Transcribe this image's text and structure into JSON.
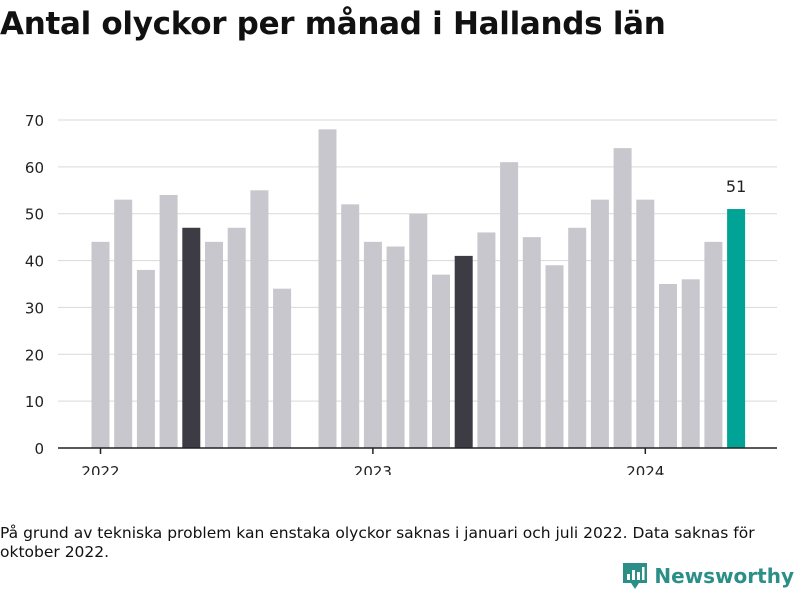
{
  "title": "Antal olyckor per månad i Hallands län",
  "footnote": "På grund av tekniska problem kan enstaka olyckor saknas i januari och juli 2022. Data saknas för oktober 2022.",
  "brand": {
    "name": "Newsworthy",
    "icon": "newsworthy-logo-icon",
    "color": "#2b8f87"
  },
  "colors": {
    "default": "#c8c7ce",
    "highlight": "#3d3c45",
    "latest": "#00a395",
    "grid": "#d9d9d9",
    "axis": "#222222"
  },
  "chart_data": {
    "type": "bar",
    "title": "Antal olyckor per månad i Hallands län",
    "xlabel": "",
    "ylabel": "",
    "ylim": [
      0,
      70
    ],
    "yticks": [
      0,
      10,
      20,
      30,
      40,
      50,
      60,
      70
    ],
    "grid": true,
    "xticks": [
      {
        "label": "2022",
        "at": "2022-01"
      },
      {
        "label": "2023",
        "at": "2023-01"
      },
      {
        "label": "2024",
        "at": "2024-01"
      }
    ],
    "bars": [
      {
        "month": "2022-01",
        "value": 44,
        "style": "default"
      },
      {
        "month": "2022-02",
        "value": 53,
        "style": "default"
      },
      {
        "month": "2022-03",
        "value": 38,
        "style": "default"
      },
      {
        "month": "2022-04",
        "value": 54,
        "style": "default"
      },
      {
        "month": "2022-05",
        "value": 47,
        "style": "highlight"
      },
      {
        "month": "2022-06",
        "value": 44,
        "style": "default"
      },
      {
        "month": "2022-07",
        "value": 47,
        "style": "default"
      },
      {
        "month": "2022-08",
        "value": 55,
        "style": "default"
      },
      {
        "month": "2022-09",
        "value": 34,
        "style": "default"
      },
      {
        "month": "2022-10",
        "value": null,
        "style": "default"
      },
      {
        "month": "2022-11",
        "value": 68,
        "style": "default"
      },
      {
        "month": "2022-12",
        "value": 52,
        "style": "default"
      },
      {
        "month": "2023-01",
        "value": 44,
        "style": "default"
      },
      {
        "month": "2023-02",
        "value": 43,
        "style": "default"
      },
      {
        "month": "2023-03",
        "value": 50,
        "style": "default"
      },
      {
        "month": "2023-04",
        "value": 37,
        "style": "default"
      },
      {
        "month": "2023-05",
        "value": 41,
        "style": "highlight"
      },
      {
        "month": "2023-06",
        "value": 46,
        "style": "default"
      },
      {
        "month": "2023-07",
        "value": 61,
        "style": "default"
      },
      {
        "month": "2023-08",
        "value": 45,
        "style": "default"
      },
      {
        "month": "2023-09",
        "value": 39,
        "style": "default"
      },
      {
        "month": "2023-10",
        "value": 47,
        "style": "default"
      },
      {
        "month": "2023-11",
        "value": 53,
        "style": "default"
      },
      {
        "month": "2023-12",
        "value": 64,
        "style": "default"
      },
      {
        "month": "2024-01",
        "value": 53,
        "style": "default"
      },
      {
        "month": "2024-02",
        "value": 35,
        "style": "default"
      },
      {
        "month": "2024-03",
        "value": 36,
        "style": "default"
      },
      {
        "month": "2024-04",
        "value": 44,
        "style": "default"
      },
      {
        "month": "2024-05",
        "value": 51,
        "style": "latest"
      }
    ],
    "annotations": [
      {
        "month": "2024-05",
        "text": "51"
      }
    ]
  }
}
